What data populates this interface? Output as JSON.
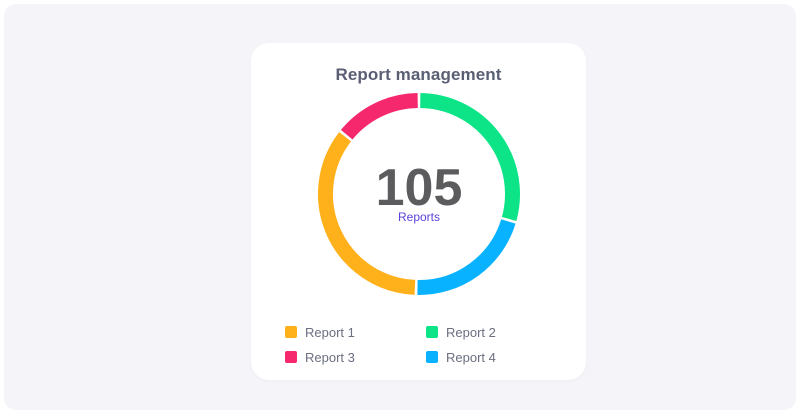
{
  "chart_data": {
    "type": "pie",
    "title": "Report management",
    "center_value": "105",
    "center_label": "Reports",
    "series": [
      {
        "name": "Report 1",
        "value": 37,
        "color": "#FFB11B"
      },
      {
        "name": "Report 2",
        "value": 31,
        "color": "#0DE487"
      },
      {
        "name": "Report 3",
        "value": 15,
        "color": "#F5286E"
      },
      {
        "name": "Report 4",
        "value": 22,
        "color": "#08B2FF"
      }
    ],
    "slice_order": [
      "Report 2",
      "Report 4",
      "Report 1",
      "Report 3"
    ],
    "legend_position": "bottom"
  }
}
